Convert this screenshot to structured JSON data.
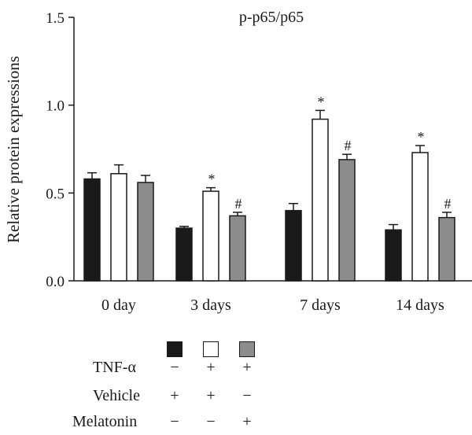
{
  "chart_data": {
    "type": "bar",
    "title": "p-p65/p65",
    "ylabel": "Relative protein expressions",
    "xlabel": "",
    "ylim": [
      0,
      1.5
    ],
    "yticks": [
      "0.0",
      "0.5",
      "1.0",
      "1.5"
    ],
    "categories": [
      "0 day",
      "3 days",
      "7 days",
      "14 days"
    ],
    "series": [
      {
        "color": "#1a1a1a",
        "values": [
          0.58,
          0.3,
          0.4,
          0.29
        ],
        "errors": [
          0.035,
          0.01,
          0.04,
          0.03
        ],
        "annotations": [
          "",
          "",
          "",
          ""
        ]
      },
      {
        "color": "#ffffff",
        "values": [
          0.61,
          0.51,
          0.92,
          0.73
        ],
        "errors": [
          0.05,
          0.02,
          0.05,
          0.04
        ],
        "annotations": [
          "",
          "*",
          "*",
          "*"
        ]
      },
      {
        "color": "#8c8c8c",
        "values": [
          0.56,
          0.37,
          0.69,
          0.36
        ],
        "errors": [
          0.04,
          0.02,
          0.03,
          0.03
        ],
        "annotations": [
          "",
          "#",
          "#",
          "#"
        ]
      }
    ]
  },
  "conditions": {
    "rows": [
      {
        "label": "TNF-α",
        "marks": [
          "−",
          "+",
          "+"
        ]
      },
      {
        "label": "Vehicle",
        "marks": [
          "+",
          "+",
          "−"
        ]
      },
      {
        "label": "Melatonin",
        "marks": [
          "−",
          "−",
          "+"
        ]
      }
    ]
  }
}
